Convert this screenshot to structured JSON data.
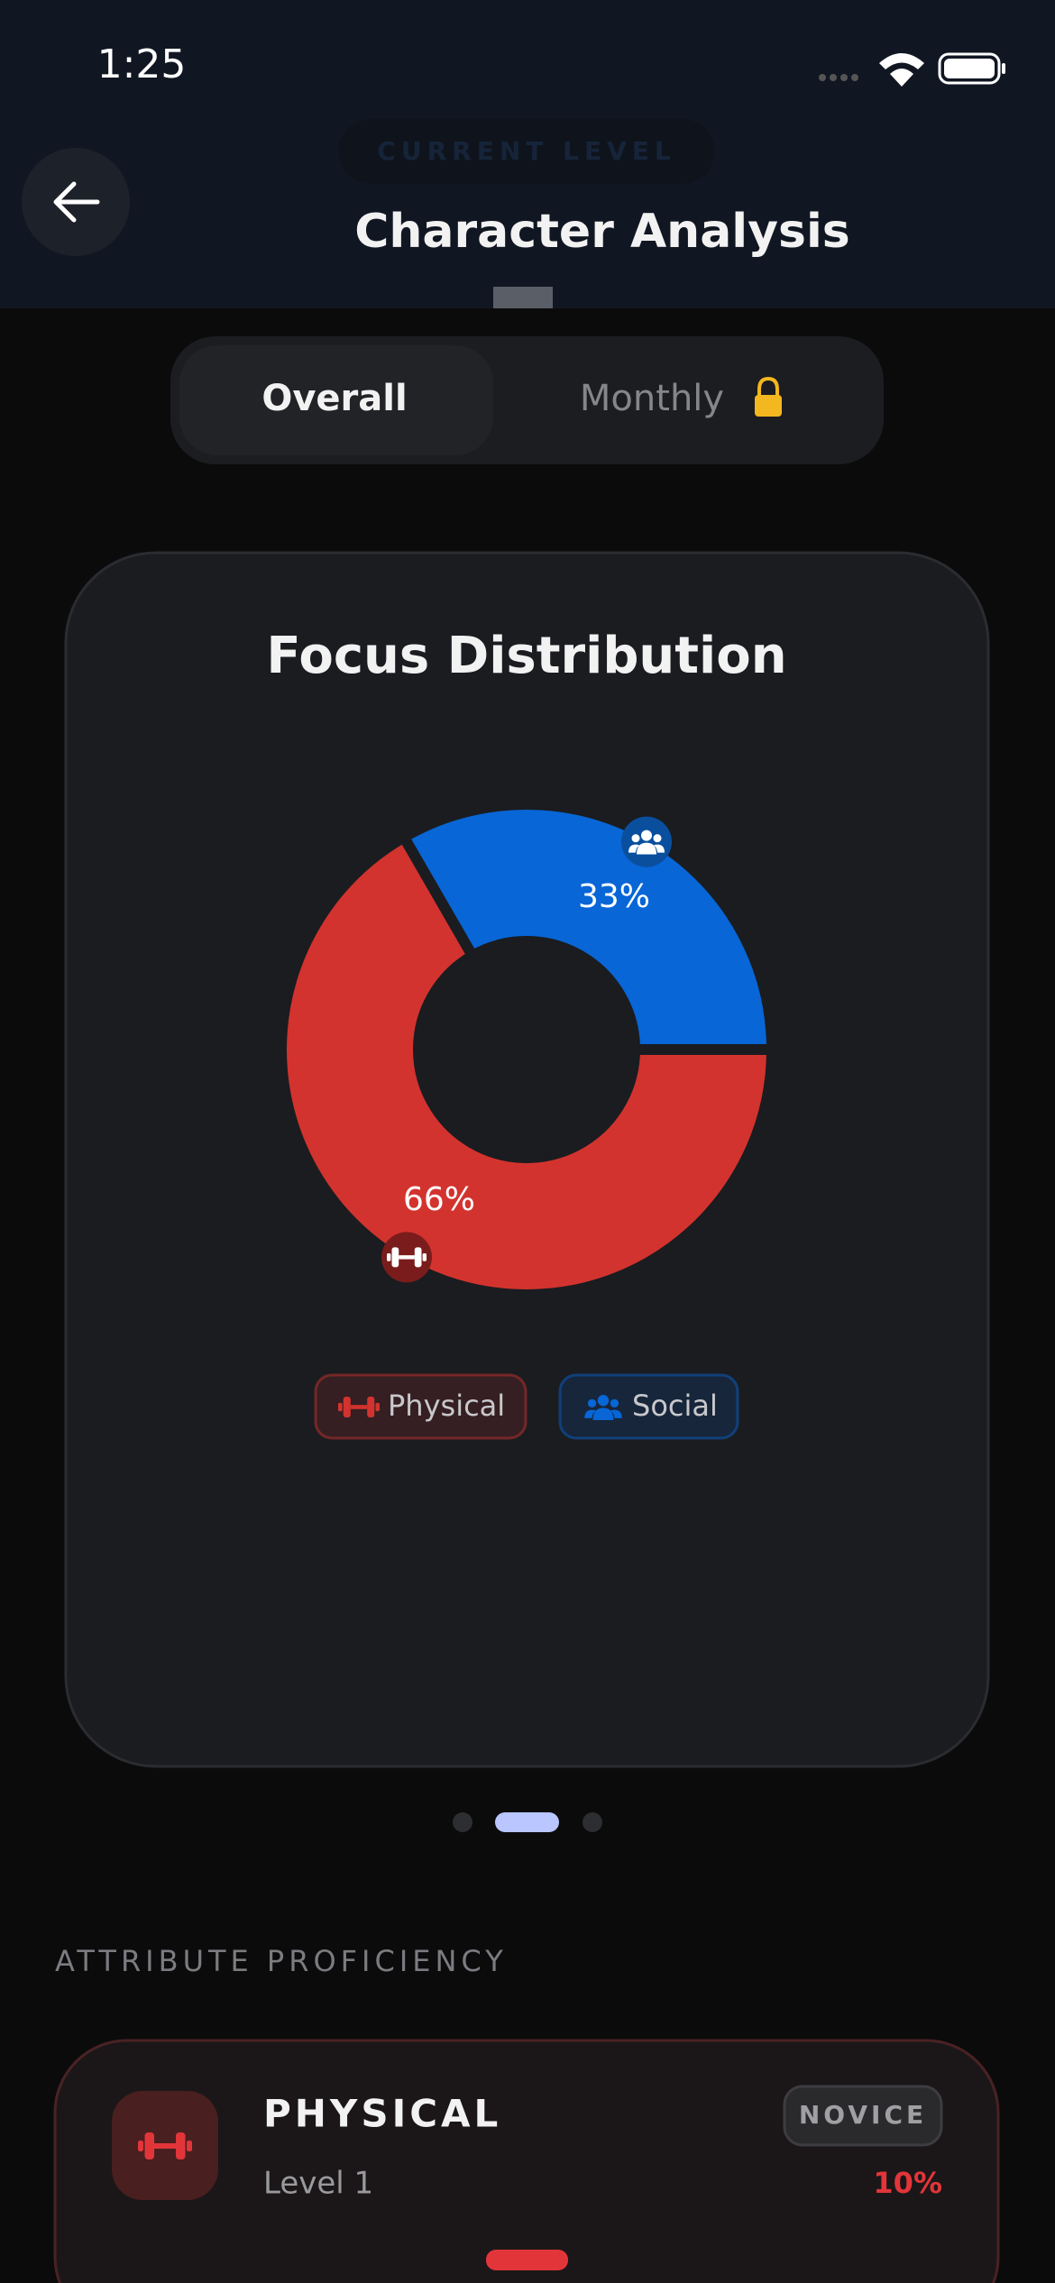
{
  "status_bar": {
    "time": "1:25"
  },
  "header": {
    "faded_label": "CURRENT LEVEL",
    "title": "Character Analysis"
  },
  "tabs": [
    "Overall",
    "Monthly"
  ],
  "chart_data": {
    "type": "pie",
    "title": "Focus Distribution",
    "categories": [
      "Physical",
      "Social"
    ],
    "values": [
      66,
      33
    ],
    "value_labels": [
      "66%",
      "33%"
    ],
    "colors": [
      "#d3332e",
      "#0866d6"
    ]
  },
  "section": {
    "title": "ATTRIBUTE PROFICIENCY"
  },
  "attribute": {
    "name": "PHYSICAL",
    "level": "Level 1",
    "rank": "NOVICE",
    "percent": "10%"
  }
}
